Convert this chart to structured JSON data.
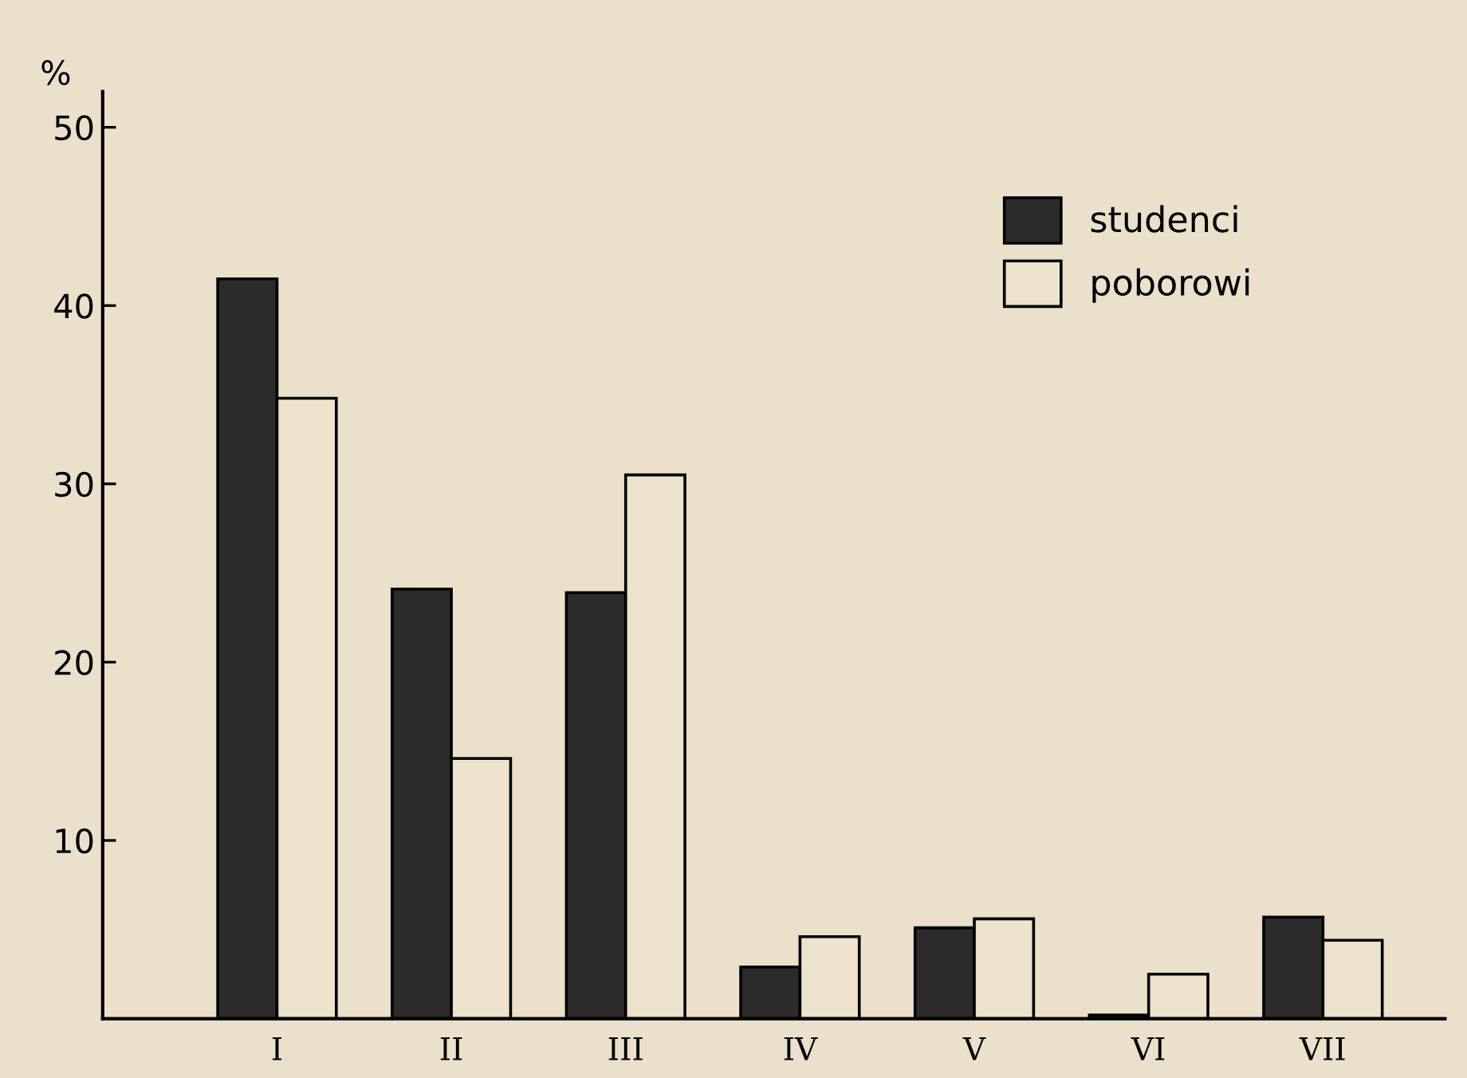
{
  "chart_data": {
    "type": "bar",
    "ylabel": "%",
    "categories": [
      "I",
      "II",
      "III",
      "IV",
      "V",
      "VI",
      "VII"
    ],
    "series": [
      {
        "name": "studenci",
        "color": "#2b2b2b",
        "values": [
          41.5,
          24.1,
          23.9,
          2.9,
          5.1,
          0.2,
          5.7
        ]
      },
      {
        "name": "poborowi",
        "color": "#ede3cc",
        "values": [
          34.8,
          14.6,
          30.5,
          4.6,
          5.6,
          2.5,
          4.4
        ]
      }
    ],
    "ylim": [
      0,
      52
    ],
    "yticks": [
      10,
      20,
      30,
      40,
      50
    ],
    "grid": false,
    "legend": "top right"
  }
}
